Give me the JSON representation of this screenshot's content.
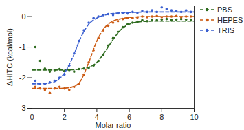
{
  "chart_data": {
    "type": "scatter",
    "xlabel": "Molar ratio",
    "ylabel": "ΔHITC (kcal/mol)",
    "xlim": [
      0,
      10
    ],
    "xticks": [
      0,
      2,
      4,
      6,
      8,
      10
    ],
    "ylim": [
      -3,
      0.35
    ],
    "yticks": [
      -3,
      -2,
      -1,
      0
    ],
    "grid": false,
    "legend": "top-right",
    "series": [
      {
        "name": "PBS",
        "color": "#2e6b1f",
        "marker": "circle",
        "line_style": "dashed",
        "x": [
          0.2,
          0.5,
          0.8,
          1.1,
          1.4,
          1.7,
          2.0,
          2.3,
          2.6,
          2.9,
          3.2,
          3.5,
          3.8,
          4.1,
          4.4,
          4.7,
          5.0,
          5.3,
          5.6,
          5.9,
          6.2,
          6.5,
          6.8,
          7.1,
          7.4,
          7.7,
          8.0,
          8.3,
          8.6,
          8.9,
          9.2,
          9.5,
          9.8
        ],
        "values": [
          -1.0,
          -1.45,
          -1.7,
          -1.8,
          -1.75,
          -1.72,
          -1.78,
          -1.75,
          -1.8,
          -1.72,
          -1.7,
          -1.68,
          -1.6,
          -1.45,
          -1.25,
          -0.95,
          -0.7,
          -0.5,
          -0.35,
          -0.25,
          -0.2,
          -0.17,
          -0.12,
          -0.15,
          -0.1,
          -0.12,
          -0.1,
          -0.08,
          -0.12,
          -0.1,
          -0.08,
          -0.1,
          -0.1
        ],
        "fit": {
          "x": [
            0,
            0.5,
            1,
            1.5,
            2,
            2.5,
            3,
            3.5,
            4,
            4.5,
            5,
            5.5,
            6,
            6.5,
            7,
            7.5,
            8,
            8.5,
            9,
            9.5,
            10
          ],
          "values": [
            -1.75,
            -1.75,
            -1.75,
            -1.75,
            -1.75,
            -1.74,
            -1.72,
            -1.66,
            -1.5,
            -1.15,
            -0.75,
            -0.42,
            -0.25,
            -0.18,
            -0.16,
            -0.15,
            -0.15,
            -0.15,
            -0.15,
            -0.15,
            -0.15
          ]
        }
      },
      {
        "name": "HEPES",
        "color": "#cc5a12",
        "marker": "circle",
        "line_style": "dashed",
        "x": [
          0.2,
          0.5,
          0.8,
          1.1,
          1.4,
          1.7,
          2.0,
          2.3,
          2.6,
          2.9,
          3.2,
          3.5,
          3.8,
          4.1,
          4.4,
          4.7,
          5.0,
          5.3,
          5.6,
          5.9,
          6.2,
          6.5,
          6.8,
          7.1,
          7.4,
          7.7,
          8.0,
          8.3,
          8.6,
          8.9,
          9.2,
          9.5,
          9.8
        ],
        "values": [
          -2.3,
          -2.35,
          -2.4,
          -2.5,
          -2.35,
          -2.3,
          -2.35,
          -2.4,
          -2.3,
          -2.2,
          -1.9,
          -1.5,
          -1.1,
          -0.7,
          -0.45,
          -0.3,
          -0.2,
          -0.15,
          -0.08,
          -0.05,
          -0.05,
          -0.03,
          0.0,
          -0.02,
          0.0,
          0.02,
          -0.02,
          0.0,
          0.0,
          0.02,
          -0.02,
          0.0,
          0.0
        ],
        "fit": {
          "x": [
            0,
            0.5,
            1,
            1.5,
            2,
            2.5,
            3,
            3.5,
            4,
            4.5,
            5,
            5.5,
            6,
            6.5,
            7,
            7.5,
            8,
            8.5,
            9,
            9.5,
            10
          ],
          "values": [
            -2.35,
            -2.35,
            -2.35,
            -2.35,
            -2.34,
            -2.3,
            -2.1,
            -1.5,
            -0.8,
            -0.35,
            -0.15,
            -0.07,
            -0.03,
            -0.01,
            0.0,
            0.0,
            0.0,
            0.0,
            0.0,
            0.0,
            0.0
          ]
        }
      },
      {
        "name": "TRIS",
        "color": "#3a5fd0",
        "marker": "circle",
        "line_style": "dashed",
        "x": [
          0.2,
          0.5,
          0.8,
          1.1,
          1.4,
          1.7,
          2.0,
          2.3,
          2.6,
          2.9,
          3.2,
          3.5,
          3.8,
          4.1,
          4.4,
          4.7,
          5.0,
          5.3,
          5.6,
          5.9,
          6.2,
          6.5,
          6.8,
          7.1,
          7.4,
          7.7,
          8.0,
          8.3,
          8.6,
          8.9,
          9.2,
          9.5,
          9.8
        ],
        "values": [
          -2.1,
          -2.2,
          -2.2,
          -2.15,
          -2.1,
          -2.0,
          -1.9,
          -1.6,
          -1.2,
          -0.8,
          -0.45,
          -0.2,
          -0.05,
          0.0,
          0.05,
          0.08,
          0.05,
          0.1,
          0.12,
          0.1,
          0.15,
          0.12,
          0.18,
          0.15,
          0.2,
          0.15,
          0.3,
          0.25,
          0.2,
          0.18,
          0.15,
          0.2,
          0.15
        ],
        "fit": {
          "x": [
            0,
            0.5,
            1,
            1.5,
            2,
            2.5,
            3,
            3.5,
            4,
            4.5,
            5,
            5.5,
            6,
            6.5,
            7,
            7.5,
            8,
            8.5,
            9,
            9.5,
            10
          ],
          "values": [
            -2.2,
            -2.2,
            -2.18,
            -2.1,
            -1.85,
            -1.35,
            -0.7,
            -0.25,
            -0.05,
            0.05,
            0.1,
            0.12,
            0.13,
            0.14,
            0.15,
            0.15,
            0.15,
            0.15,
            0.15,
            0.15,
            0.15
          ]
        }
      }
    ]
  }
}
